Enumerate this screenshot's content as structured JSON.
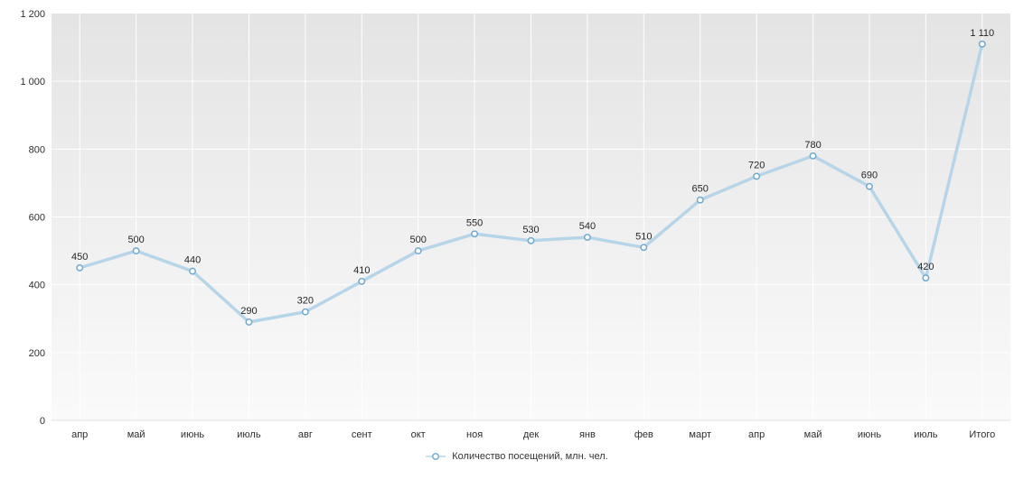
{
  "chart_data": {
    "type": "line",
    "title": "",
    "xlabel": "",
    "ylabel": "",
    "categories": [
      "апр",
      "май",
      "июнь",
      "июль",
      "авг",
      "сент",
      "окт",
      "ноя",
      "дек",
      "янв",
      "фев",
      "март",
      "апр",
      "май",
      "июнь",
      "июль",
      "Итого"
    ],
    "series": [
      {
        "name": "Количество посещений, млн. чел.",
        "values": [
          450,
          500,
          440,
          290,
          320,
          410,
          500,
          550,
          530,
          540,
          510,
          650,
          720,
          780,
          690,
          420,
          1110
        ],
        "point_labels": [
          "450",
          "500",
          "440",
          "290",
          "320",
          "410",
          "500",
          "550",
          "530",
          "540",
          "510",
          "650",
          "720",
          "780",
          "690",
          "420",
          "1 110"
        ]
      }
    ],
    "ylim": [
      0,
      1200
    ],
    "yticks": [
      {
        "value": 0,
        "label": "0"
      },
      {
        "value": 200,
        "label": "200"
      },
      {
        "value": 400,
        "label": "400"
      },
      {
        "value": 600,
        "label": "600"
      },
      {
        "value": 800,
        "label": "800"
      },
      {
        "value": 1000,
        "label": "1 000"
      },
      {
        "value": 1200,
        "label": "1 200"
      }
    ],
    "grid": {
      "horizontal": true,
      "vertical": true,
      "color": "#ffffff"
    },
    "legend": {
      "label": "Количество посещений, млн. чел.",
      "position": "bottom-center"
    },
    "colors": {
      "page_bg": "#ffffff",
      "plot_bg_top": "#e4e4e4",
      "plot_bg_bottom": "#fafafa",
      "plot_border_bottom": "#e0e0e0",
      "line": "#b7d5e8",
      "marker_fill": "#ffffff",
      "marker_stroke": "#6fa9cf",
      "point_label_text": "#262626",
      "axis_text": "#2e2e2e",
      "legend_text": "#333333"
    }
  }
}
